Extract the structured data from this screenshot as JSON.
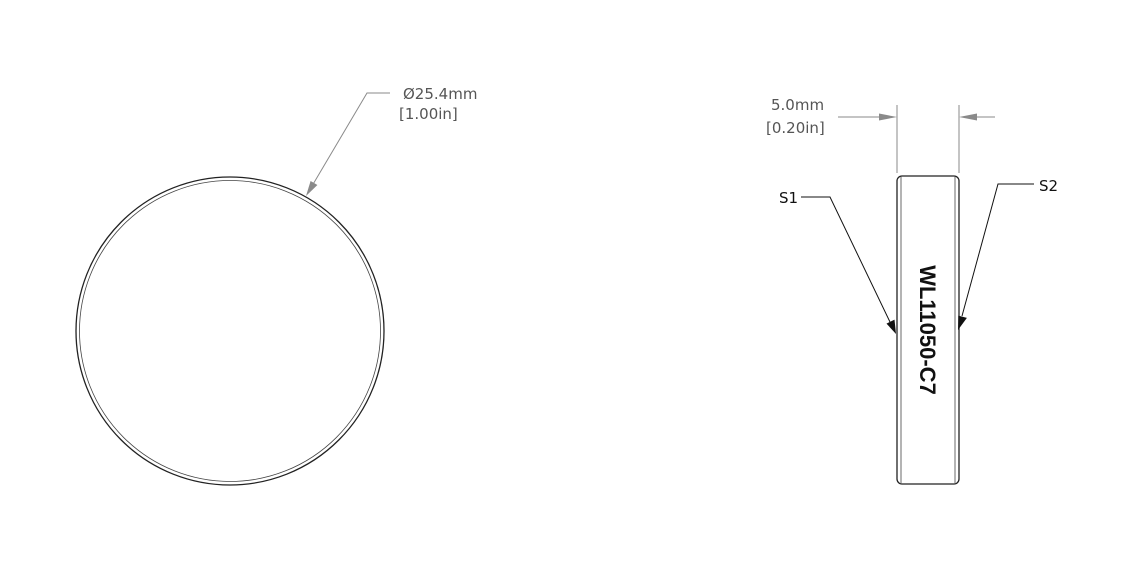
{
  "front_view": {
    "diameter_mm": "Ø25.4mm",
    "diameter_in": "[1.00in]"
  },
  "side_view": {
    "thickness_mm": "5.0mm",
    "thickness_in": "[0.20in]",
    "surface_1_label": "S1",
    "surface_2_label": "S2",
    "engraving": "WL11050-C7"
  }
}
